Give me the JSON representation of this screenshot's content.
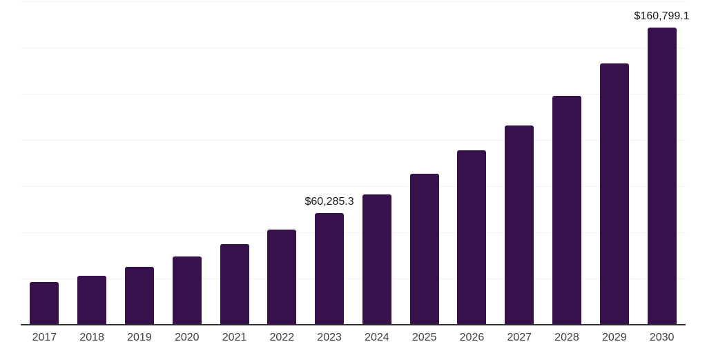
{
  "chart": {
    "background_color": "#ffffff",
    "bar_color": "#36114B",
    "gridline_color": "#f2f2f2",
    "axis_line_color": "#2b2b2b",
    "tick_label_color": "#404040",
    "data_label_color": "#1a1a1a"
  },
  "chart_data": {
    "type": "bar",
    "title": "",
    "xlabel": "",
    "ylabel": "",
    "categories": [
      "2017",
      "2018",
      "2019",
      "2020",
      "2021",
      "2022",
      "2023",
      "2024",
      "2025",
      "2026",
      "2027",
      "2028",
      "2029",
      "2030"
    ],
    "values": [
      23100,
      26400,
      31300,
      36800,
      43500,
      51400,
      60285.3,
      70500,
      81900,
      94500,
      107900,
      123900,
      141400,
      160799.1
    ],
    "data_labels": [
      "",
      "",
      "",
      "",
      "",
      "",
      "$60,285.3",
      "",
      "",
      "",
      "",
      "",
      "",
      "$160,799.1"
    ],
    "ylim": [
      0,
      175000
    ],
    "gridline_step": 25000,
    "grid": true,
    "legend": false,
    "annotations": [
      {
        "category": "2023",
        "text": "$60,285.3"
      },
      {
        "category": "2030",
        "text": "$160,799.1"
      }
    ]
  }
}
